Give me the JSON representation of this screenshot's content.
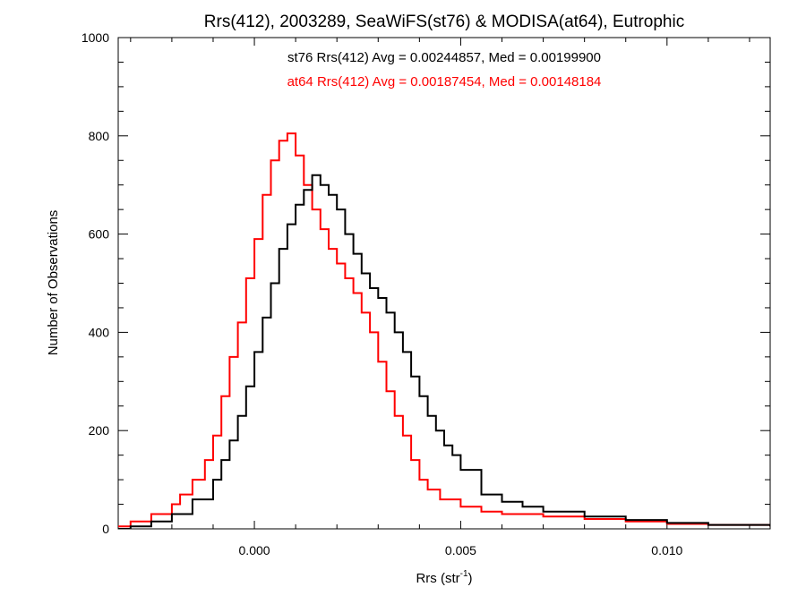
{
  "chart_data": {
    "type": "histogram",
    "title": "Rrs(412), 2003289, SeaWiFS(st76) & MODISA(at64), Eutrophic",
    "xlabel": "Rrs (str",
    "xlabel_superscript": "-1",
    "xlabel_suffix": ")",
    "ylabel": "Number of Observations",
    "xlim": [
      -0.0033,
      0.0125
    ],
    "ylim": [
      0,
      1000
    ],
    "x_ticks": [
      0.0,
      0.005,
      0.01
    ],
    "x_tick_labels": [
      "0.000",
      "0.005",
      "0.010"
    ],
    "y_ticks": [
      0,
      200,
      400,
      600,
      800,
      1000
    ],
    "y_tick_labels": [
      "0",
      "200",
      "400",
      "600",
      "800",
      "1000"
    ],
    "grid": false,
    "legend": "top-center",
    "annotations": [
      {
        "text": "st76 Rrs(412) Avg = 0.00244857, Med = 0.00199900",
        "color": "#000000"
      },
      {
        "text": "at64 Rrs(412) Avg = 0.00187454, Med = 0.00148184",
        "color": "#ff0000"
      }
    ],
    "series": [
      {
        "color": "#000000",
        "x": [
          -0.0033,
          -0.003,
          -0.0025,
          -0.002,
          -0.0015,
          -0.001,
          -0.0008,
          -0.0006,
          -0.0004,
          -0.0002,
          0.0,
          0.0002,
          0.0004,
          0.0006,
          0.0008,
          0.001,
          0.0012,
          0.0014,
          0.0016,
          0.0018,
          0.002,
          0.0022,
          0.0024,
          0.0026,
          0.0028,
          0.003,
          0.0032,
          0.0034,
          0.0036,
          0.0038,
          0.004,
          0.0042,
          0.0044,
          0.0046,
          0.0048,
          0.005,
          0.0055,
          0.006,
          0.0065,
          0.007,
          0.008,
          0.009,
          0.01,
          0.011,
          0.0125
        ],
        "y": [
          0,
          5,
          15,
          30,
          60,
          100,
          140,
          180,
          230,
          290,
          360,
          430,
          500,
          570,
          620,
          660,
          690,
          720,
          700,
          680,
          650,
          600,
          560,
          520,
          490,
          470,
          440,
          400,
          360,
          310,
          270,
          230,
          200,
          170,
          150,
          120,
          70,
          55,
          45,
          35,
          25,
          18,
          12,
          8,
          5
        ]
      },
      {
        "color": "#ff0000",
        "x": [
          -0.0033,
          -0.003,
          -0.0025,
          -0.002,
          -0.0018,
          -0.0015,
          -0.0012,
          -0.001,
          -0.0008,
          -0.0006,
          -0.0004,
          -0.0002,
          0.0,
          0.0002,
          0.0004,
          0.0006,
          0.0008,
          0.001,
          0.0012,
          0.0014,
          0.0016,
          0.0018,
          0.002,
          0.0022,
          0.0024,
          0.0026,
          0.0028,
          0.003,
          0.0032,
          0.0034,
          0.0036,
          0.0038,
          0.004,
          0.0042,
          0.0045,
          0.005,
          0.0055,
          0.006,
          0.007,
          0.008,
          0.009,
          0.01,
          0.011,
          0.0125
        ],
        "y": [
          5,
          15,
          30,
          50,
          70,
          100,
          140,
          190,
          270,
          350,
          420,
          510,
          590,
          680,
          750,
          790,
          805,
          760,
          700,
          650,
          610,
          570,
          540,
          510,
          480,
          440,
          400,
          340,
          280,
          230,
          190,
          140,
          100,
          80,
          60,
          45,
          35,
          30,
          25,
          20,
          15,
          10,
          8,
          5
        ]
      }
    ]
  }
}
